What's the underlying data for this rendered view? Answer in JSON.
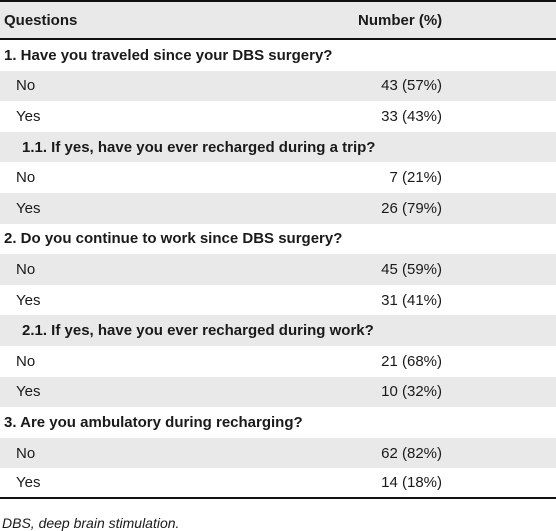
{
  "header": {
    "col1": "Questions",
    "col2": "Number (%)"
  },
  "rows": [
    {
      "type": "q",
      "label": "1. Have you traveled since your DBS surgery?",
      "value": ""
    },
    {
      "type": "ans",
      "label": "No",
      "value": "43 (57%)"
    },
    {
      "type": "ans",
      "label": "Yes",
      "value": "33 (43%)"
    },
    {
      "type": "sq",
      "label": "1.1. If yes, have you ever recharged during a trip?",
      "value": ""
    },
    {
      "type": "ans",
      "label": "No",
      "value": "7 (21%)"
    },
    {
      "type": "ans",
      "label": "Yes",
      "value": "26 (79%)"
    },
    {
      "type": "q",
      "label": "2. Do you continue to work since DBS surgery?",
      "value": ""
    },
    {
      "type": "ans",
      "label": "No",
      "value": "45 (59%)"
    },
    {
      "type": "ans",
      "label": "Yes",
      "value": "31 (41%)"
    },
    {
      "type": "sq",
      "label": "2.1. If yes, have you ever recharged during work?",
      "value": ""
    },
    {
      "type": "ans",
      "label": "No",
      "value": "21 (68%)"
    },
    {
      "type": "ans",
      "label": "Yes",
      "value": "10 (32%)"
    },
    {
      "type": "q",
      "label": "3. Are you ambulatory during recharging?",
      "value": ""
    },
    {
      "type": "ans",
      "label": "No",
      "value": "62 (82%)"
    },
    {
      "type": "ans",
      "label": "Yes",
      "value": "14 (18%)"
    }
  ],
  "footnote": "DBS, deep brain stimulation."
}
